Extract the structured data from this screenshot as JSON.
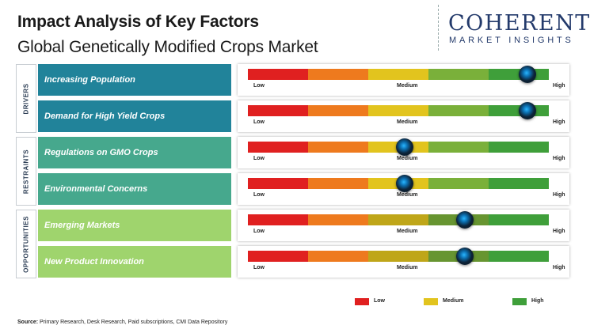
{
  "header": {
    "title": "Impact Analysis of Key Factors",
    "subtitle": "Global Genetically Modified Crops Market"
  },
  "logo": {
    "main": "COHERENT",
    "sub": "MARKET INSIGHTS"
  },
  "chart_data": {
    "type": "gauge",
    "scale": {
      "low": "Low",
      "medium": "Medium",
      "high": "High"
    },
    "levels": [
      "Low",
      "Medium",
      "High"
    ],
    "colors": [
      "#e02020",
      "#ee7a1e",
      "#e2c41e",
      "#7ab03a",
      "#3f9f3a"
    ],
    "groups": [
      {
        "name": "DRIVERS",
        "color": "#21839a",
        "factors": [
          {
            "label": "Increasing Population",
            "value": 0.93
          },
          {
            "label": "Demand for High Yield Crops",
            "value": 0.93
          }
        ]
      },
      {
        "name": "RESTRAINTS",
        "color": "#46a88d",
        "factors": [
          {
            "label": "Regulations on GMO Crops",
            "value": 0.52
          },
          {
            "label": "Environmental Concerns",
            "value": 0.52
          }
        ]
      },
      {
        "name": "OPPORTUNITIES",
        "color": "#9fd46d",
        "factors": [
          {
            "label": "Emerging Markets",
            "value": 0.72
          },
          {
            "label": "New Product Innovation",
            "value": 0.72
          }
        ]
      }
    ]
  },
  "legend": [
    {
      "label": "Low",
      "color": "#e02020"
    },
    {
      "label": "Medium",
      "color": "#e2c41e"
    },
    {
      "label": "High",
      "color": "#3f9f3a"
    }
  ],
  "source": {
    "prefix": "Source:",
    "text": " Primary Research, Desk Research, Paid subscriptions, CMI Data Repository"
  }
}
